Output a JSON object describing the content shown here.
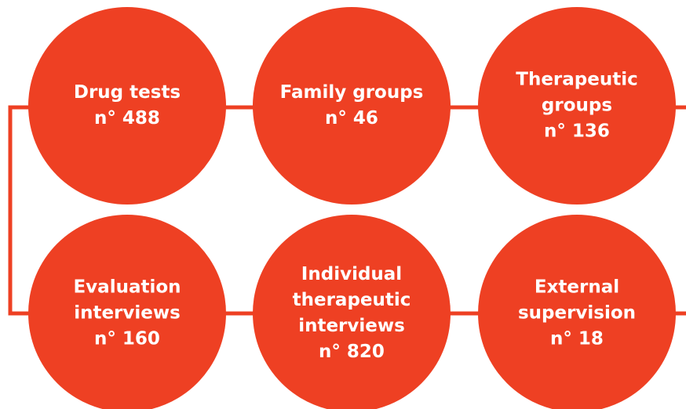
{
  "nodes": [
    {
      "lines": [
        "Drug tests",
        "n° 488"
      ]
    },
    {
      "lines": [
        "Family groups",
        "n° 46"
      ]
    },
    {
      "lines": [
        "Therapeutic",
        "groups",
        "n° 136"
      ]
    },
    {
      "lines": [
        "Evaluation",
        "interviews",
        "n° 160"
      ]
    },
    {
      "lines": [
        "Individual",
        "therapeutic",
        "interviews",
        "n° 820"
      ]
    },
    {
      "lines": [
        "External",
        "supervision",
        "n° 18"
      ]
    }
  ]
}
